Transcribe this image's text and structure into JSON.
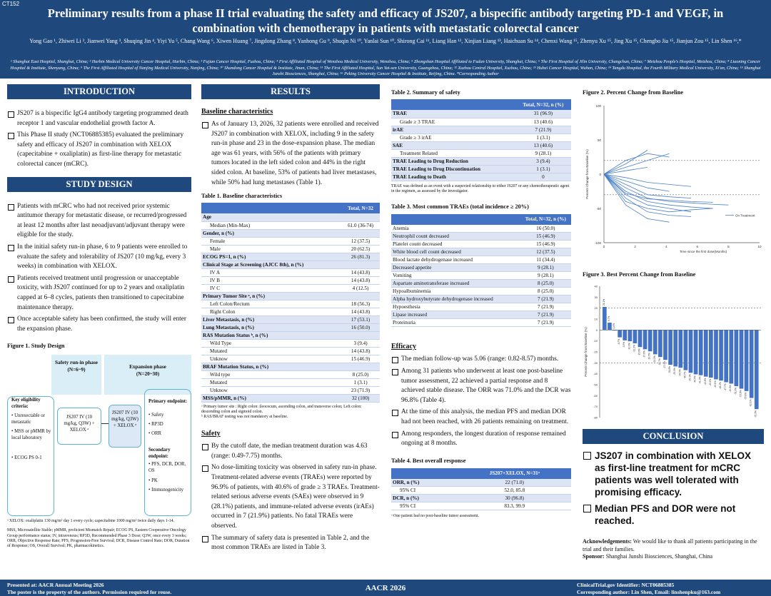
{
  "header": {
    "code": "CT152",
    "title": "Preliminary results from a phase II trial evaluating the safety and efficacy of JS207, a bispecific antibody targeting PD-1 and VEGF, in combination with chemotherapy in patients with metastatic colorectal cancer",
    "authors": "Yong Gao ¹, Zhiwei Li ², Jianwei Yang ³, Shuqing Jin ⁴, Yiyi Yu ⁵, Chang Wang ⁶, Xiwen Huang ⁷, Jingdong Zhang ⁸, Yanhong Gu ⁹, Shuqin Ni ¹⁰, Yanlai Sun ¹⁰, Shirong Cai ¹¹, Liang Han ¹², Xinjian Liang ¹³, Haichuan Su ¹⁴, Chenxi Wang ¹⁵, Zhenyu Xu ¹⁵, Jing Xu ¹⁵, Chengbo Jia ¹⁵, Jianjun Zou ¹⁵, Lin Shen ¹⁶,*",
    "affiliations": "¹ Shanghai East Hospital, Shanghai, China; ² Harbin Medical University Cancer Hospital, Harbin, China; ³ Fujian Cancer Hospital, Fuzhou, China; ⁴ First Affiliated Hospital of Wenzhou Medical University, Wenzhou, China; ⁵ Zhongshan Hospital Affiliated to Fudan University, Shanghai, China; ⁶ The First Hospital of Jilin University, Changchun, China; ⁷ Meizhou People's Hospital, Meizhou, China; ⁸ Liaoning Cancer Hospital & Institute, Shenyang, China; ⁹ The First Affiliated Hospital of Nanjing Medical University, Nanjing, China; ¹⁰ Shandong Cancer Hospital & Institute, Jinan, China; ¹¹ The First Affiliated Hospital, Sun Yat-sen University, Guangzhou, China; ¹² Xuzhou Central Hospital, Xuzhou, China; ¹³ Hubei Cancer Hospital, Wuhan, China; ¹⁴ Tangdu Hospital, the Fourth Military Medical University, Xi'an, China; ¹⁵ Shanghai Junshi Biosciences, Shanghai, China; ¹⁶ Peking University Cancer Hospital & Institute, Beijing, China. *Corresponding Author"
  },
  "intro": {
    "title": "INTRODUCTION",
    "bullets": [
      "JS207 is a bispecific IgG4 antibody targeting programmed death receptor 1 and vascular endothelial growth factor A.",
      "This Phase II study (NCT06885385) evaluated the preliminary safety and efficacy of JS207 in combination with XELOX (capecitabine + oxaliplatin) as first-line therapy for metastatic colorectal cancer (mCRC)."
    ]
  },
  "design": {
    "title": "STUDY DESIGN",
    "bullets": [
      "Patients with mCRC who had not received prior systemic antitumor therapy for metastatic disease, or recurred/progressed at least 12 months after last neoadjuvant/adjuvant therapy were eligible for the study.",
      "In the initial safety run-in phase, 6 to 9 patients were enrolled to evaluate the safety and tolerability of JS207 (10 mg/kg, every 3 weeks) in combination with XELOX.",
      "Patients received treatment until progression or unacceptable toxicity, with JS207 continued for up to 2 years and oxaliplatin capped at 6–8 cycles, patients then transitioned to capecitabine maintenance therapy.",
      "Once acceptable safety has been confirmed, the study will enter the expansion phase."
    ]
  },
  "fig1": {
    "caption": "Figure 1. Study Design",
    "runin_label": "Safety run-in phase",
    "runin_n": "(N=6~9)",
    "exp_label": "Expansion phase",
    "exp_n": "(N=20~30)",
    "elig_title": "Key eligibility criteria:",
    "elig_items": [
      "Unresectable or metastatic",
      "MSS or pMMR by local laboratory",
      "ECOG PS 0-1"
    ],
    "arm1": "JS207 IV (10 mg/kg, Q3W) + XELOX ᵃ",
    "arm2": "JS207 IV (10 mg/kg, Q3W) + XELOX ᵃ",
    "primary_title": "Primary endpoint:",
    "primary_items": [
      "Safety",
      "RP3D",
      "ORR"
    ],
    "secondary_title": "Secondary endpoint:",
    "secondary_items": [
      "PFS, DCR, DOR, OS",
      "PK",
      "Immunogenicity"
    ],
    "footnote1": "ᵃ XELOX: oxaliplatin 130 mg/m² day 1 every cycle; capecitabine 1000 mg/m² twice daily days 1-14.",
    "footnote2": "MSS, Microsatellite Stable; pMMR, proficient Mismatch Repair; ECOG PS, Eastern Cooperative Oncology Group performance status; IV, intravenous; RP3D, Recommended Phase 3 Dose; Q3W, once every 3 weeks; ORR, Objective Response Rate; PFS, Progression-Free Survival; DCR, Disease Control Rate; DOR, Duration of Response; OS, Overall Survival; PK, pharmacokinetics."
  },
  "results": {
    "title": "RESULTS",
    "baseline_h": "Baseline characteristics",
    "baseline_text": "As of January 13, 2026, 32 patients were enrolled and received JS207 in combination with XELOX, including 9 in the safety run-in phase and 23 in the dose-expansion phase. The median age was 61 years, with 56% of the patients with primary tumors located in the left sided colon and 44% in the right sided colon. At baseline, 53% of patients had liver metastases, while 50% had lung metastases (Table 1).",
    "safety_h": "Safety",
    "safety_bullets": [
      "By the cutoff date, the median treatment duration was 4.63 (range: 0.49-7.75) months.",
      "No dose-limiting toxicity was observed in safety run-in phase. Treatment-related adverse events (TRAEs) were reported by 96.9% of patients, with 40.6% of grade ≥ 3 TRAEs. Treatment-related serious adverse events (SAEs) were observed in 9 (28.1%) patients, and immune-related adverse events (irAEs) occurred in 7 (21.9%) patients. No fatal TRAEs were observed.",
      "The summary of safety data is presented in Table 2, and the most common TRAEs are listed in Table 3."
    ],
    "eff_h": "Efficacy",
    "eff_bullets": [
      "The median follow-up was 5.06 (range: 0.82-8.57) months.",
      "Among 31 patients who underwent at least one post-baseline tumor assessment, 22 achieved a partial response and 8 achieved stable disease. The ORR was 71.0% and the DCR was 96.8% (Table 4).",
      "At the time of this analysis, the median PFS and median DOR had not been reached, with 26 patients remaining on treatment.",
      "Among responders, the longest duration of response remained ongoing at 8 months."
    ]
  },
  "t1": {
    "caption": "Table 1. Baseline characteristics",
    "header": [
      "",
      "Total, N=32"
    ],
    "rows": [
      [
        "Age",
        "",
        "b"
      ],
      [
        "Median (Min-Max)",
        "61.0 (36-74)",
        "i"
      ],
      [
        "Gender, n (%)",
        "",
        "b"
      ],
      [
        "Female",
        "12 (37.5)",
        "i"
      ],
      [
        "Male",
        "20 (62.5)",
        "i"
      ],
      [
        "ECOG PS=1, n (%)",
        "26 (81.3)",
        "b"
      ],
      [
        "Clinical Stage at Screening (AJCC 8th), n (%)",
        "",
        "b"
      ],
      [
        "IV A",
        "14 (43.8)",
        "i"
      ],
      [
        "IV B",
        "14 (43.8)",
        "i"
      ],
      [
        "IV C",
        "4 (12.5)",
        "i"
      ],
      [
        "Primary Tumor Site ᵃ, n (%)",
        "",
        "b"
      ],
      [
        "Left Colon/Rectum",
        "18 (56.3)",
        "i"
      ],
      [
        "Right Colon",
        "14 (43.8)",
        "i"
      ],
      [
        "Liver Metastasis, n (%)",
        "17 (53.1)",
        "b"
      ],
      [
        "Lung Metastasis, n (%)",
        "16 (50.0)",
        "b"
      ],
      [
        "RAS Mutation Status ᵇ, n (%)",
        "",
        "b"
      ],
      [
        "Wild Type",
        "3 (9.4)",
        "i"
      ],
      [
        "Mutated",
        "14 (43.8)",
        "i"
      ],
      [
        "Unknow",
        "15 (46.9)",
        "i"
      ],
      [
        "BRAF Mutation Status, n (%)",
        "",
        "b"
      ],
      [
        "Wild type",
        "8 (25.0)",
        "i"
      ],
      [
        "Mutated",
        "1 (3.1)",
        "i"
      ],
      [
        "Unknow",
        "23 (71.9)",
        "i"
      ],
      [
        "MSS/pMMR, n (%)",
        "32 (100)",
        "b"
      ]
    ],
    "fn1": "ᵃ Primary tumor site : Right colon: ileocecum, ascending colon, and transverse colon; Left colon: descending colon and sigmoid colon.",
    "fn2": "ᵇ RAS/BRAF testing was not mandatory at baseline."
  },
  "t2": {
    "caption": "Table 2. Summary of safety",
    "header": [
      "",
      "Total, N=32, n (%)"
    ],
    "rows": [
      [
        "TRAE",
        "31 (96.9)",
        "b"
      ],
      [
        "Grade ≥ 3 TRAE",
        "13 (40.6)",
        "i"
      ],
      [
        "irAE",
        "7 (21.9)",
        "b"
      ],
      [
        "Grade ≥ 3 irAE",
        "1 (3.1)",
        "i"
      ],
      [
        "SAE",
        "13 (40.6)",
        "b"
      ],
      [
        "Treatment Related",
        "9 (28.1)",
        "i"
      ],
      [
        "TRAE Leading to Drug Reduction",
        "3 (9.4)",
        "b"
      ],
      [
        "TRAE Leading to Drug Discontinuation",
        "1 (3.1)",
        "b"
      ],
      [
        "TRAE Leading to Death",
        "0",
        "b"
      ]
    ],
    "note": "TRAE was defined as an event with a suspected relationship to either JS207 or any chemotherapeutic agent in the regimen, as assessed by the investigator."
  },
  "t3": {
    "caption": "Table 3. Most common TRAEs (total incidence ≥ 20%)",
    "header": [
      "",
      "Total, N=32, n (%)"
    ],
    "rows": [
      [
        "Anemia",
        "16 (50.0)"
      ],
      [
        "Neutrophil count decreased",
        "15 (46.9)"
      ],
      [
        "Platelet count decreased",
        "15 (46.9)"
      ],
      [
        "White blood cell count decreased",
        "12 (37.5)"
      ],
      [
        "Blood lactate dehydrogenase increased",
        "11 (34.4)"
      ],
      [
        "Decreased appetite",
        "9 (28.1)"
      ],
      [
        "Vomiting",
        "9 (28.1)"
      ],
      [
        "Aspartate aminotransferase increased",
        "8 (25.0)"
      ],
      [
        "Hypoalbuminemia",
        "8 (25.0)"
      ],
      [
        "Alpha hydroxybutyrate dehydrogenase increased",
        "7 (21.9)"
      ],
      [
        "Hypoesthesia",
        "7 (21.9)"
      ],
      [
        "Lipase increased",
        "7 (21.9)"
      ],
      [
        "Proteinuria",
        "7 (21.9)"
      ]
    ]
  },
  "t4": {
    "caption": "Table 4. Best overall response",
    "header": [
      "",
      "JS207+XELOX, N=31ᵃ"
    ],
    "rows": [
      [
        "ORR, n (%)",
        "22 (71.0)",
        "b"
      ],
      [
        "95% CI",
        "52.0, 85.8",
        "i"
      ],
      [
        "DCR, n (%)",
        "30 (96.8)",
        "b"
      ],
      [
        "95% CI",
        "83.3, 99.9",
        "i"
      ]
    ],
    "note": "ᵃ One patient had no post-baseline tumor assessment."
  },
  "fig2": {
    "caption": "Figure 2. Percent Change from Baseline"
  },
  "fig3": {
    "caption": "Figure 3. Best Percent Change from Baseline"
  },
  "conclusion": {
    "title": "CONCLUSION",
    "items": [
      "JS207 in combination with XELOX as first-line treatment for mCRC patients was well tolerated with promising efficacy.",
      "Median PFS and DOR were not reached."
    ],
    "ack_label": "Acknowledgements:",
    "ack": "We would like to thank all patients participating in the trial and their families.",
    "sponsor_label": "Sponsor:",
    "sponsor": "Shanghai Junshi Biosciences, Shanghai, China"
  },
  "footer": {
    "left1": "Presented at: AACR Annual Meeting 2026",
    "left2": "The poster is the property of the authors. Permission required for reuse.",
    "center": "AACR 2026",
    "right1": "ClinicalTrial.gov Identifier: NCT06885385",
    "right2": "Corresponding author: Lin Shen, Email: linshenpku@163.com"
  },
  "chart_data": [
    {
      "type": "line",
      "title": "Figure 2. Percent Change from Baseline",
      "xlabel": "Time since the first dose(Months)",
      "ylabel": "Percent Change from Baseline (%)",
      "xticks": [
        "0",
        "2",
        "4",
        "6",
        "8",
        "10"
      ],
      "yticks": [
        "100",
        "50",
        "0",
        "-50",
        "-100"
      ],
      "xlim": [
        0,
        10
      ],
      "ylim": [
        -100,
        100
      ],
      "reference_lines": [
        20,
        -30
      ],
      "legend": "On Treatment",
      "series": [
        {
          "x": [
            0,
            1.4,
            2.8,
            4.2,
            5.6,
            7.0
          ],
          "y": [
            0,
            -25,
            -40,
            -45,
            -48,
            -50
          ]
        },
        {
          "x": [
            0,
            1.4,
            2.8,
            4.2,
            5.6
          ],
          "y": [
            0,
            -30,
            -45,
            -50,
            -55
          ]
        },
        {
          "x": [
            0,
            1.4,
            2.8,
            4.2,
            5.6,
            7.0,
            8.0
          ],
          "y": [
            0,
            -20,
            -35,
            -40,
            -42,
            -44,
            -45
          ]
        },
        {
          "x": [
            0,
            1.4,
            2.8
          ],
          "y": [
            0,
            15,
            35
          ]
        },
        {
          "x": [
            0,
            1.4,
            2.8,
            4.2
          ],
          "y": [
            0,
            10,
            20,
            30
          ]
        },
        {
          "x": [
            0,
            1.4,
            2.8,
            4.2,
            5.6
          ],
          "y": [
            0,
            -35,
            -55,
            -60,
            -62
          ]
        },
        {
          "x": [
            0,
            1.4,
            2.8,
            4.2
          ],
          "y": [
            0,
            -10,
            -20,
            -25
          ]
        },
        {
          "x": [
            0,
            1.4,
            2.8,
            4.2,
            5.6,
            7.0
          ],
          "y": [
            0,
            -40,
            -50,
            -55,
            -52,
            -50
          ]
        },
        {
          "x": [
            0,
            1.4,
            2.8
          ],
          "y": [
            0,
            5,
            10
          ]
        },
        {
          "x": [
            0,
            1.4,
            2.8,
            4.2,
            5.6
          ],
          "y": [
            0,
            -15,
            -30,
            -33,
            -35
          ]
        },
        {
          "x": [
            0,
            1.4,
            2.8,
            4.2
          ],
          "y": [
            0,
            -45,
            -65,
            -70
          ]
        },
        {
          "x": [
            0,
            1.4,
            2.8,
            4.2,
            5.6
          ],
          "y": [
            0,
            -5,
            -12,
            -15,
            -18
          ]
        },
        {
          "x": [
            0,
            1.4,
            2.8,
            4.2,
            5.6,
            7.0
          ],
          "y": [
            0,
            -28,
            -36,
            -38,
            -40,
            -41
          ]
        },
        {
          "x": [
            0,
            1.4,
            2.8,
            4.2
          ],
          "y": [
            0,
            20,
            30,
            25
          ]
        }
      ]
    },
    {
      "type": "bar",
      "title": "Figure 3. Best Percent Change from Baseline",
      "xlabel": "",
      "ylabel": "Percent Change from Baseline (%)",
      "ylim": [
        -80,
        40
      ],
      "yticks": [
        "40",
        "30",
        "20",
        "10",
        "0",
        "-10",
        "-20",
        "-30",
        "-40",
        "-50",
        "-60",
        "-70",
        "-80"
      ],
      "reference_lines": [
        20,
        -30
      ],
      "values": [
        21.1,
        6.7,
        0,
        -6.7,
        -9.5,
        -10.3,
        -12.2,
        -15.6,
        -17.6,
        -19.5,
        -22.2,
        -24.7,
        -27.3,
        -31.8,
        -33.3,
        -34.5,
        -36.7,
        -39.1,
        -40.5,
        -41.3,
        -42.6,
        -43.5,
        -45.1,
        -46.2,
        -47.7,
        -49.0,
        -51.3,
        -53.6,
        -55.8,
        -62.1,
        -72.3
      ],
      "labels": [
        "21.1%",
        "6.7%",
        "0.0%",
        "-6.7%",
        "-9.5%",
        "-10.3%",
        "-12.2%",
        "-15.6%",
        "-17.6%",
        "-19.5%",
        "-22.2%",
        "-24.7%",
        "-27.3%",
        "-31.8%",
        "-33.3%",
        "-34.5%",
        "-36.7%",
        "-39.1%",
        "-40.5%",
        "-41.3%",
        "-42.6%",
        "-43.5%",
        "-45.1%",
        "-46.2%",
        "-47.7%",
        "-49.0%",
        "-51.3%",
        "-53.6%",
        "-55.8%",
        "-62.1%",
        "-72.3%"
      ]
    }
  ]
}
